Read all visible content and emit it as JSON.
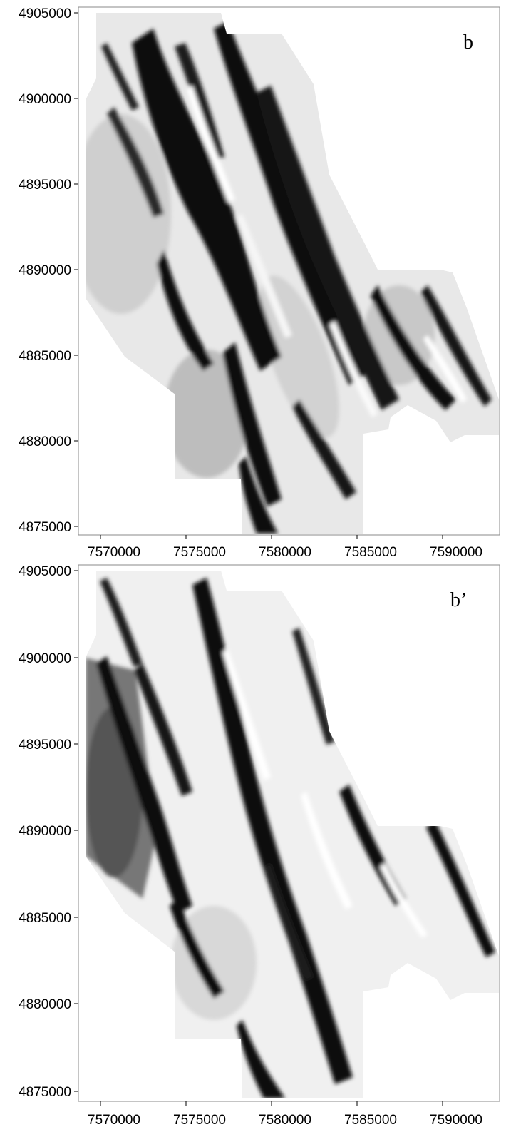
{
  "panels": [
    {
      "id": "top",
      "label": "b",
      "y_ticks": [
        "4905000",
        "4900000",
        "4895000",
        "4890000",
        "4885000",
        "4880000",
        "4875000"
      ],
      "x_ticks": [
        "7570000",
        "7575000",
        "7580000",
        "7585000",
        "7590000"
      ],
      "shading": "greyscale relief, dark bands oriented NW-SE"
    },
    {
      "id": "bottom",
      "label": "b’",
      "y_ticks": [
        "4905000",
        "4900000",
        "4895000",
        "4890000",
        "4885000",
        "4880000",
        "4875000"
      ],
      "x_ticks": [
        "7570000",
        "7575000",
        "7580000",
        "7585000",
        "7590000"
      ],
      "shading": "greyscale relief, dark bands oriented NW-SE"
    }
  ],
  "colors": {
    "dark": "#0a0a0a",
    "mid": "#8c8c8c",
    "light": "#e6e6e6",
    "frame": "#8a8a8a"
  }
}
